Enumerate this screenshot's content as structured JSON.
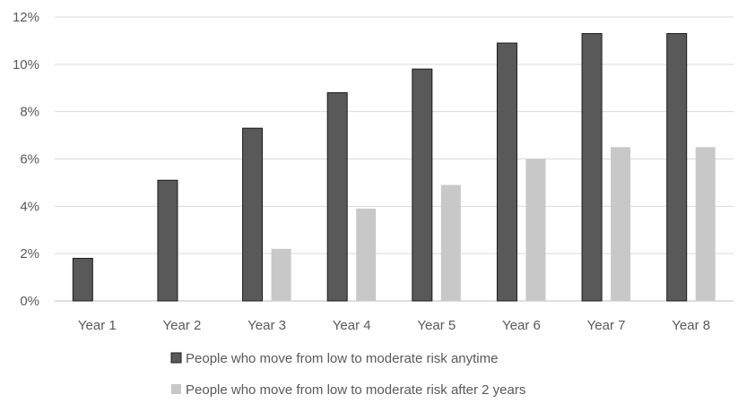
{
  "chart_data": {
    "type": "bar",
    "title": "",
    "xlabel": "",
    "ylabel": "",
    "categories": [
      "Year 1",
      "Year 2",
      "Year 3",
      "Year 4",
      "Year 5",
      "Year 6",
      "Year 7",
      "Year 8"
    ],
    "series": [
      {
        "name": "People who move from low to moderate risk anytime",
        "color": "#595959",
        "values": [
          1.8,
          5.1,
          7.3,
          8.8,
          9.8,
          10.9,
          11.3,
          11.3
        ]
      },
      {
        "name": "People who move from low to moderate risk after 2 years",
        "color": "#c8c8c8",
        "values": [
          null,
          null,
          2.2,
          3.9,
          4.9,
          6.0,
          6.5,
          6.5
        ]
      }
    ],
    "ylim": [
      0,
      12
    ],
    "yticks": [
      0,
      2,
      4,
      6,
      8,
      10,
      12
    ],
    "ytick_labels": [
      "0%",
      "2%",
      "4%",
      "6%",
      "8%",
      "10%",
      "12%"
    ],
    "grid": true,
    "legend_placement": "bottom"
  }
}
